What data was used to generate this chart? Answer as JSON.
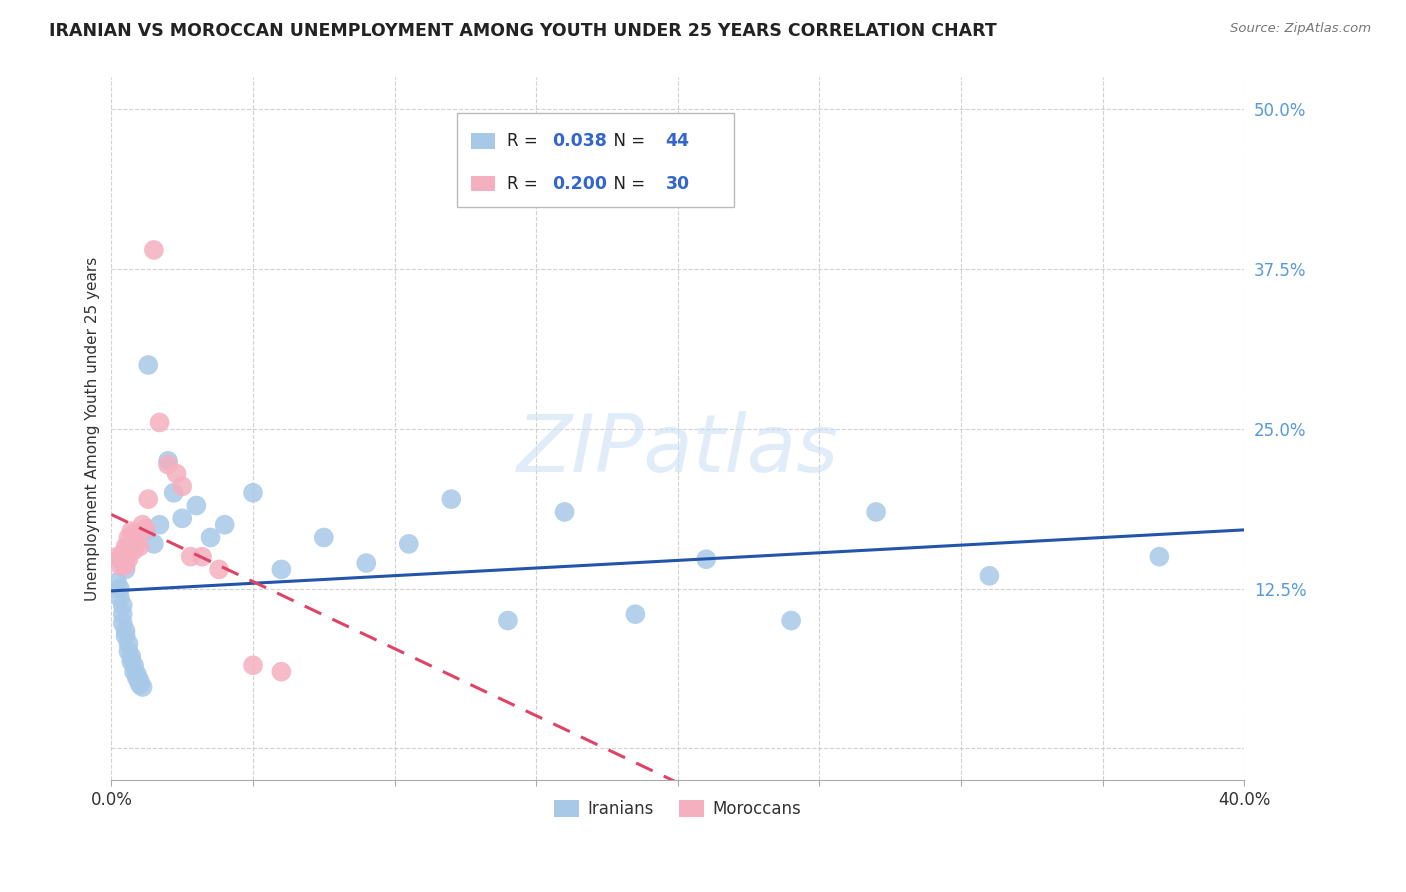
{
  "title": "IRANIAN VS MOROCCAN UNEMPLOYMENT AMONG YOUTH UNDER 25 YEARS CORRELATION CHART",
  "source": "Source: ZipAtlas.com",
  "ylabel": "Unemployment Among Youth under 25 years",
  "xlim": [
    0.0,
    0.4
  ],
  "ylim": [
    -0.025,
    0.525
  ],
  "xticks": [
    0.0,
    0.05,
    0.1,
    0.15,
    0.2,
    0.25,
    0.3,
    0.35,
    0.4
  ],
  "ytick_positions": [
    0.0,
    0.125,
    0.25,
    0.375,
    0.5
  ],
  "yticklabels": [
    "",
    "12.5%",
    "25.0%",
    "37.5%",
    "50.0%"
  ],
  "iranian_R": "0.038",
  "iranian_N": "44",
  "moroccan_R": "0.200",
  "moroccan_N": "30",
  "watermark": "ZIPatlas",
  "iranian_color": "#a8c8e8",
  "moroccan_color": "#f5b0c0",
  "iranian_line_color": "#2255aa",
  "moroccan_line_color": "#dd4466",
  "background_color": "#ffffff",
  "grid_color": "#cccccc",
  "iranian_points_x": [
    0.002,
    0.003,
    0.003,
    0.004,
    0.004,
    0.004,
    0.005,
    0.005,
    0.005,
    0.006,
    0.006,
    0.007,
    0.007,
    0.008,
    0.008,
    0.009,
    0.009,
    0.01,
    0.01,
    0.011,
    0.012,
    0.013,
    0.015,
    0.017,
    0.02,
    0.022,
    0.025,
    0.03,
    0.035,
    0.04,
    0.05,
    0.06,
    0.075,
    0.09,
    0.105,
    0.12,
    0.14,
    0.16,
    0.185,
    0.21,
    0.24,
    0.27,
    0.31,
    0.37
  ],
  "iranian_points_y": [
    0.13,
    0.125,
    0.118,
    0.112,
    0.105,
    0.098,
    0.092,
    0.088,
    0.14,
    0.082,
    0.076,
    0.072,
    0.068,
    0.065,
    0.06,
    0.058,
    0.055,
    0.053,
    0.05,
    0.048,
    0.17,
    0.3,
    0.16,
    0.175,
    0.225,
    0.2,
    0.18,
    0.19,
    0.165,
    0.175,
    0.2,
    0.14,
    0.165,
    0.145,
    0.16,
    0.195,
    0.1,
    0.185,
    0.105,
    0.148,
    0.1,
    0.185,
    0.135,
    0.15
  ],
  "moroccan_points_x": [
    0.002,
    0.003,
    0.003,
    0.004,
    0.004,
    0.005,
    0.005,
    0.005,
    0.006,
    0.006,
    0.006,
    0.007,
    0.007,
    0.008,
    0.008,
    0.009,
    0.01,
    0.011,
    0.012,
    0.013,
    0.015,
    0.017,
    0.02,
    0.023,
    0.025,
    0.028,
    0.032,
    0.038,
    0.05,
    0.06
  ],
  "moroccan_points_y": [
    0.15,
    0.148,
    0.143,
    0.152,
    0.145,
    0.158,
    0.148,
    0.143,
    0.165,
    0.158,
    0.148,
    0.17,
    0.16,
    0.168,
    0.155,
    0.162,
    0.158,
    0.175,
    0.172,
    0.195,
    0.39,
    0.255,
    0.222,
    0.215,
    0.205,
    0.15,
    0.15,
    0.14,
    0.065,
    0.06
  ]
}
